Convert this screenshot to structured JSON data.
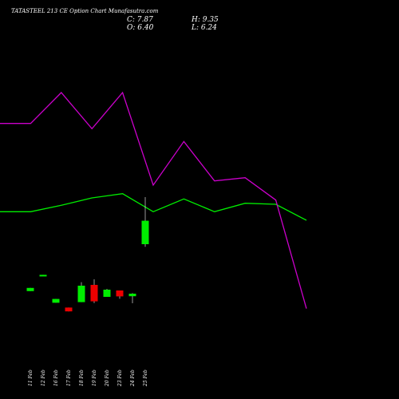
{
  "chart_data": {
    "type": "candlestick",
    "title": "TATASTEEL 213 CE Option Chart Munafasutra.com",
    "ohlc": {
      "c_label": "C: 7.87",
      "h_label": "H: 9.35",
      "o_label": "O: 6.40",
      "l_label": "L: 6.24"
    },
    "categories": [
      "11 Feb",
      "12 Feb",
      "16 Feb",
      "17 Feb",
      "18 Feb",
      "19 Feb",
      "20 Feb",
      "23 Feb",
      "24 Feb",
      "25 Feb"
    ],
    "tick_labels": [
      "11 Feb",
      "12 Feb",
      "16 Feb",
      "17 Feb",
      "18 Feb",
      "19 Feb",
      "20 Feb",
      "23 Feb",
      "24 Feb",
      "25 Feb"
    ],
    "candles": [
      {
        "date": "11 Feb",
        "open": 3.46,
        "high": 3.66,
        "low": 3.46,
        "close": 3.66
      },
      {
        "date": "12 Feb",
        "open": 4.43,
        "high": 4.48,
        "low": 4.43,
        "close": 4.48
      },
      {
        "date": "16 Feb",
        "open": 2.73,
        "high": 2.97,
        "low": 2.73,
        "close": 2.97
      },
      {
        "date": "17 Feb",
        "open": 2.43,
        "high": 2.43,
        "low": 2.19,
        "close": 2.19
      },
      {
        "date": "18 Feb",
        "open": 2.77,
        "high": 4.02,
        "low": 2.77,
        "close": 3.8
      },
      {
        "date": "19 Feb",
        "open": 3.85,
        "high": 4.2,
        "low": 2.71,
        "close": 2.82
      },
      {
        "date": "20 Feb",
        "open": 3.1,
        "high": 3.6,
        "low": 3.1,
        "close": 3.55
      },
      {
        "date": "23 Feb",
        "open": 3.5,
        "high": 3.5,
        "low": 2.98,
        "close": 3.13
      },
      {
        "date": "24 Feb",
        "open": 3.14,
        "high": 3.33,
        "low": 2.7,
        "close": 3.3
      },
      {
        "date": "25 Feb",
        "open": 6.4,
        "high": 9.35,
        "low": 6.24,
        "close": 7.87
      }
    ],
    "ylim": [
      2.0,
      10.5
    ],
    "colors": {
      "background": "#000000",
      "up": "#00ee00",
      "down": "#ee0000",
      "line_upper": "#00ee00",
      "line_lower": "#cc00cc"
    },
    "line_series": [
      {
        "values": [
          0.3,
          0.3,
          0.6,
          0.95,
          1.15,
          0.3,
          0.9,
          0.3,
          0.7,
          0.65,
          -0.1
        ]
      },
      {
        "values": [
          4.45,
          4.45,
          5.9,
          4.2,
          5.9,
          1.55,
          3.6,
          1.75,
          1.9,
          0.85,
          -4.25
        ]
      }
    ],
    "line_ylim": [
      -5.5,
      9.5
    ]
  }
}
